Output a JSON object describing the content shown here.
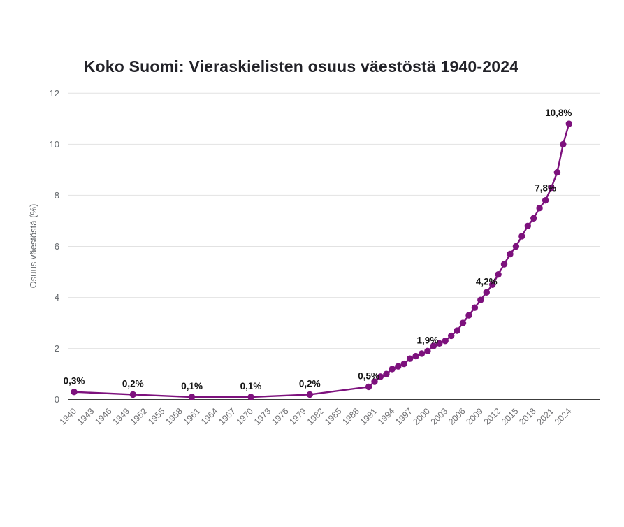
{
  "page": {
    "background": "#ffffff"
  },
  "chart_data": {
    "type": "line",
    "title": "Koko Suomi: Vieraskielisten osuus väestöstä 1940-2024",
    "xlabel": "",
    "ylabel": "Osuus väestöstä (%)",
    "xlim": [
      1940,
      2024
    ],
    "ylim": [
      0,
      12
    ],
    "yticks": [
      0,
      2,
      4,
      6,
      8,
      10,
      12
    ],
    "xticks": [
      1940,
      1943,
      1946,
      1949,
      1952,
      1955,
      1958,
      1961,
      1964,
      1967,
      1970,
      1973,
      1976,
      1979,
      1982,
      1985,
      1988,
      1991,
      1994,
      1997,
      2000,
      2003,
      2006,
      2009,
      2012,
      2015,
      2018,
      2021,
      2024
    ],
    "grid": "horizontal-only",
    "legend": "none",
    "colors": {
      "line": "#7d117d",
      "marker": "#7d117d",
      "gridline": "#e2e2e2",
      "axis_line": "#3c3c3c",
      "tick_text": "#6e6e71",
      "data_label": "#141414"
    },
    "series": [
      {
        "name": "Vieraskielisten osuus väestöstä (%)",
        "points": [
          [
            1940,
            0.3
          ],
          [
            1950,
            0.2
          ],
          [
            1960,
            0.1
          ],
          [
            1970,
            0.1
          ],
          [
            1980,
            0.2
          ],
          [
            1990,
            0.5
          ],
          [
            1991,
            0.7
          ],
          [
            1992,
            0.9
          ],
          [
            1993,
            1.0
          ],
          [
            1994,
            1.2
          ],
          [
            1995,
            1.3
          ],
          [
            1996,
            1.4
          ],
          [
            1997,
            1.6
          ],
          [
            1998,
            1.7
          ],
          [
            1999,
            1.8
          ],
          [
            2000,
            1.9
          ],
          [
            2001,
            2.1
          ],
          [
            2002,
            2.2
          ],
          [
            2003,
            2.3
          ],
          [
            2004,
            2.5
          ],
          [
            2005,
            2.7
          ],
          [
            2006,
            3.0
          ],
          [
            2007,
            3.3
          ],
          [
            2008,
            3.6
          ],
          [
            2009,
            3.9
          ],
          [
            2010,
            4.2
          ],
          [
            2011,
            4.5
          ],
          [
            2012,
            4.9
          ],
          [
            2013,
            5.3
          ],
          [
            2014,
            5.7
          ],
          [
            2015,
            6.0
          ],
          [
            2016,
            6.4
          ],
          [
            2017,
            6.8
          ],
          [
            2018,
            7.1
          ],
          [
            2019,
            7.5
          ],
          [
            2020,
            7.8
          ],
          [
            2021,
            8.3
          ],
          [
            2022,
            8.9
          ],
          [
            2023,
            10.0
          ],
          [
            2024,
            10.8
          ]
        ]
      }
    ],
    "point_labels": [
      {
        "x": 1940,
        "text": "0,3%"
      },
      {
        "x": 1950,
        "text": "0,2%"
      },
      {
        "x": 1960,
        "text": "0,1%"
      },
      {
        "x": 1970,
        "text": "0,1%"
      },
      {
        "x": 1980,
        "text": "0,2%"
      },
      {
        "x": 1990,
        "text": "0,5%"
      },
      {
        "x": 2000,
        "text": "1,9%"
      },
      {
        "x": 2010,
        "text": "4,2%"
      },
      {
        "x": 2020,
        "text": "7,8%",
        "dy": -13
      },
      {
        "x": 2024,
        "text": "10,8%",
        "dx": -15
      }
    ]
  }
}
